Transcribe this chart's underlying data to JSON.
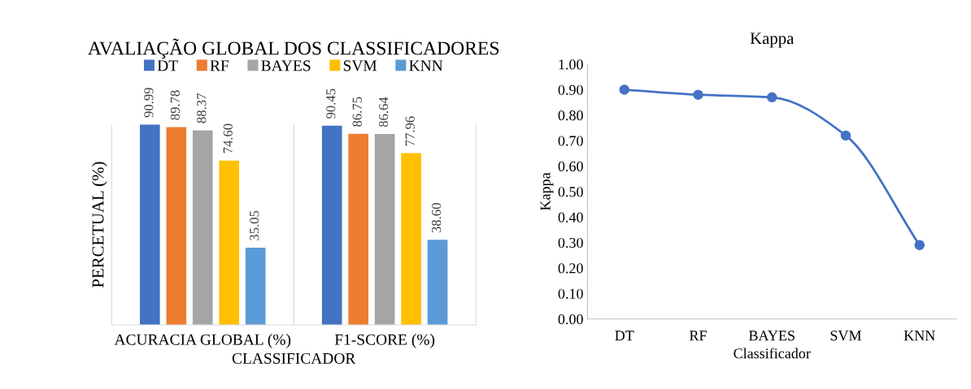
{
  "chart_data": [
    {
      "type": "bar",
      "title": "AVALIAÇÃO GLOBAL DOS CLASSIFICADORES",
      "xlabel": "CLASSIFICADOR",
      "ylabel": "PERCETUAL (%)",
      "categories": [
        "ACURACIA GLOBAL (%)",
        "F1-SCORE (%)"
      ],
      "series": [
        {
          "name": "DT",
          "color": "#4472c4",
          "values": [
            90.99,
            90.45
          ],
          "value_labels": [
            "90.99",
            "90.45"
          ]
        },
        {
          "name": "RF",
          "color": "#ed7d31",
          "values": [
            89.78,
            86.75
          ],
          "value_labels": [
            "89.78",
            "86.75"
          ]
        },
        {
          "name": "BAYES",
          "color": "#a5a5a5",
          "values": [
            88.37,
            86.64
          ],
          "value_labels": [
            "88.37",
            "86.64"
          ]
        },
        {
          "name": "SVM",
          "color": "#ffc000",
          "values": [
            74.6,
            77.96
          ],
          "value_labels": [
            "74.60",
            "77.96"
          ]
        },
        {
          "name": "KNN",
          "color": "#5b9bd5",
          "values": [
            35.05,
            38.6
          ],
          "value_labels": [
            "35.05",
            "38.60"
          ]
        }
      ],
      "legend": "top",
      "grid": false,
      "tick_labels": "x"
    },
    {
      "type": "line",
      "title": "Kappa",
      "xlabel": "Classificador",
      "ylabel": "Kappa",
      "categories": [
        "DT",
        "RF",
        "BAYES",
        "SVM",
        "KNN"
      ],
      "series": [
        {
          "color": "#4472c4",
          "values": [
            0.9,
            0.88,
            0.87,
            0.72,
            0.29
          ]
        }
      ],
      "ylim": [
        0,
        1
      ],
      "yticks": [
        {
          "value": 0,
          "label": "0.00"
        },
        {
          "value": 0.1,
          "label": "0.10"
        },
        {
          "value": 0.2,
          "label": "0.20"
        },
        {
          "value": 0.3,
          "label": "0.30"
        },
        {
          "value": 0.4,
          "label": "0.40"
        },
        {
          "value": 0.5,
          "label": "0.50"
        },
        {
          "value": 0.6,
          "label": "0.60"
        },
        {
          "value": 0.7,
          "label": "0.70"
        },
        {
          "value": 0.8,
          "label": "0.80"
        },
        {
          "value": 0.9,
          "label": "0.90"
        },
        {
          "value": 1,
          "label": "1.00"
        }
      ],
      "marker": "circle",
      "line_style": "solid",
      "grid": false
    }
  ]
}
